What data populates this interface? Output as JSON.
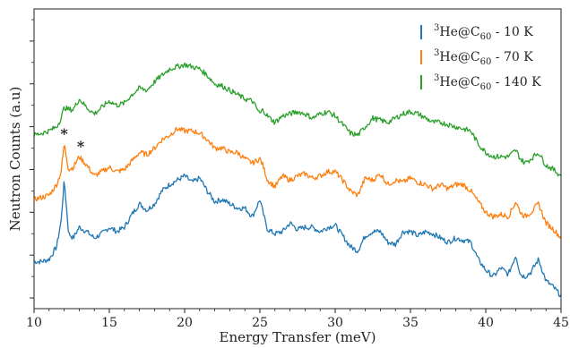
{
  "chart_data": {
    "type": "line",
    "title": "",
    "xlabel": "Energy Transfer  (meV)",
    "ylabel": "Neutron Counts (a.u)",
    "xlim": [
      10,
      45
    ],
    "xticks": [
      10,
      15,
      20,
      25,
      30,
      35,
      40,
      45
    ],
    "y_axis_tick_labels": "none",
    "grid": false,
    "legend_position": "top-right",
    "annotations": [
      {
        "text": "*",
        "x": 12.0,
        "series": "70 K"
      },
      {
        "text": "*",
        "x": 13.1,
        "series": "70 K"
      }
    ],
    "series": [
      {
        "name_parts": {
          "base": "3",
          "label": "He@C",
          "sub": "60",
          "temp": " - 10 K"
        },
        "color": "#1f77b4",
        "x": [
          10.0,
          10.5,
          11.0,
          11.5,
          11.8,
          12.0,
          12.3,
          12.6,
          13.0,
          13.5,
          14.0,
          14.5,
          15.0,
          15.5,
          16.0,
          16.5,
          17.0,
          17.5,
          18.0,
          18.5,
          19.0,
          19.5,
          20.0,
          20.5,
          21.0,
          21.5,
          22.0,
          22.5,
          23.0,
          23.5,
          24.0,
          24.5,
          25.0,
          25.2,
          25.5,
          26.0,
          26.5,
          27.0,
          27.5,
          28.0,
          28.5,
          29.0,
          29.5,
          30.0,
          30.5,
          31.0,
          31.5,
          32.0,
          32.5,
          33.0,
          33.5,
          34.0,
          34.5,
          35.0,
          35.5,
          36.0,
          36.5,
          37.0,
          37.5,
          38.0,
          38.5,
          39.0,
          39.5,
          40.0,
          40.5,
          41.0,
          41.5,
          42.0,
          42.3,
          42.6,
          43.0,
          43.5,
          44.0,
          44.5,
          45.0
        ],
        "values": [
          0.17,
          0.17,
          0.18,
          0.24,
          0.36,
          0.55,
          0.3,
          0.28,
          0.33,
          0.31,
          0.28,
          0.3,
          0.33,
          0.31,
          0.33,
          0.39,
          0.44,
          0.41,
          0.44,
          0.5,
          0.53,
          0.55,
          0.57,
          0.54,
          0.56,
          0.5,
          0.45,
          0.46,
          0.44,
          0.42,
          0.42,
          0.38,
          0.46,
          0.4,
          0.32,
          0.3,
          0.31,
          0.35,
          0.32,
          0.33,
          0.33,
          0.31,
          0.33,
          0.34,
          0.29,
          0.24,
          0.22,
          0.29,
          0.31,
          0.31,
          0.26,
          0.25,
          0.31,
          0.31,
          0.29,
          0.31,
          0.3,
          0.28,
          0.26,
          0.28,
          0.27,
          0.26,
          0.18,
          0.13,
          0.1,
          0.14,
          0.11,
          0.2,
          0.11,
          0.1,
          0.12,
          0.18,
          0.08,
          0.05,
          0.01
        ]
      },
      {
        "name_parts": {
          "base": "3",
          "label": "He@C",
          "sub": "60",
          "temp": " - 70 K"
        },
        "color": "#ff7f0e",
        "x": [
          10.0,
          10.5,
          11.0,
          11.5,
          11.8,
          12.0,
          12.3,
          12.6,
          13.0,
          13.5,
          14.0,
          14.5,
          15.0,
          15.5,
          16.0,
          16.5,
          17.0,
          17.5,
          18.0,
          18.5,
          19.0,
          19.5,
          20.0,
          20.5,
          21.0,
          21.5,
          22.0,
          22.5,
          23.0,
          23.5,
          24.0,
          24.5,
          25.0,
          25.2,
          25.5,
          26.0,
          26.5,
          27.0,
          27.5,
          28.0,
          28.5,
          29.0,
          29.5,
          30.0,
          30.5,
          31.0,
          31.5,
          32.0,
          32.5,
          33.0,
          33.5,
          34.0,
          34.5,
          35.0,
          35.5,
          36.0,
          36.5,
          37.0,
          37.5,
          38.0,
          38.5,
          39.0,
          39.5,
          40.0,
          40.5,
          41.0,
          41.5,
          42.0,
          42.3,
          42.6,
          43.0,
          43.5,
          44.0,
          44.5,
          45.0
        ],
        "values": [
          0.46,
          0.47,
          0.48,
          0.53,
          0.59,
          0.72,
          0.6,
          0.61,
          0.66,
          0.62,
          0.57,
          0.59,
          0.61,
          0.59,
          0.6,
          0.64,
          0.68,
          0.67,
          0.7,
          0.74,
          0.76,
          0.79,
          0.78,
          0.78,
          0.77,
          0.74,
          0.7,
          0.7,
          0.68,
          0.68,
          0.65,
          0.63,
          0.65,
          0.62,
          0.55,
          0.52,
          0.57,
          0.55,
          0.57,
          0.58,
          0.56,
          0.57,
          0.59,
          0.59,
          0.55,
          0.5,
          0.48,
          0.56,
          0.55,
          0.58,
          0.53,
          0.55,
          0.54,
          0.56,
          0.54,
          0.53,
          0.51,
          0.53,
          0.51,
          0.53,
          0.53,
          0.5,
          0.45,
          0.4,
          0.38,
          0.39,
          0.38,
          0.45,
          0.4,
          0.38,
          0.4,
          0.44,
          0.35,
          0.32,
          0.28
        ]
      },
      {
        "name_parts": {
          "base": "3",
          "label": "He@C",
          "sub": "60",
          "temp": " - 140 K"
        },
        "color": "#2ca02c",
        "x": [
          10.0,
          10.5,
          11.0,
          11.5,
          11.8,
          12.0,
          12.3,
          12.6,
          13.0,
          13.5,
          14.0,
          14.5,
          15.0,
          15.5,
          16.0,
          16.5,
          17.0,
          17.5,
          18.0,
          18.5,
          19.0,
          19.5,
          20.0,
          20.5,
          21.0,
          21.5,
          22.0,
          22.5,
          23.0,
          23.5,
          24.0,
          24.5,
          25.0,
          25.2,
          25.5,
          26.0,
          26.5,
          27.0,
          27.5,
          28.0,
          28.5,
          29.0,
          29.5,
          30.0,
          30.5,
          31.0,
          31.5,
          32.0,
          32.5,
          33.0,
          33.5,
          34.0,
          34.5,
          35.0,
          35.5,
          36.0,
          36.5,
          37.0,
          37.5,
          38.0,
          38.5,
          39.0,
          39.5,
          40.0,
          40.5,
          41.0,
          41.5,
          42.0,
          42.3,
          42.6,
          43.0,
          43.5,
          44.0,
          44.5,
          45.0
        ],
        "values": [
          0.76,
          0.77,
          0.78,
          0.8,
          0.84,
          0.89,
          0.88,
          0.88,
          0.93,
          0.89,
          0.86,
          0.89,
          0.92,
          0.9,
          0.91,
          0.95,
          0.98,
          0.97,
          1.01,
          1.04,
          1.07,
          1.08,
          1.09,
          1.08,
          1.07,
          1.04,
          1.0,
          0.99,
          0.97,
          0.95,
          0.93,
          0.92,
          0.86,
          0.88,
          0.85,
          0.82,
          0.85,
          0.86,
          0.87,
          0.86,
          0.84,
          0.86,
          0.87,
          0.85,
          0.81,
          0.77,
          0.76,
          0.8,
          0.84,
          0.83,
          0.82,
          0.84,
          0.86,
          0.87,
          0.86,
          0.84,
          0.82,
          0.82,
          0.81,
          0.8,
          0.79,
          0.78,
          0.72,
          0.68,
          0.66,
          0.66,
          0.66,
          0.69,
          0.65,
          0.63,
          0.65,
          0.68,
          0.62,
          0.6,
          0.57
        ]
      }
    ]
  }
}
